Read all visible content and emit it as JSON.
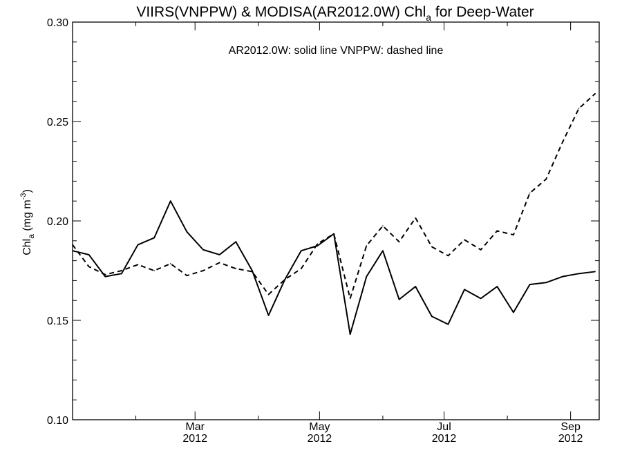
{
  "chart_data": {
    "type": "line",
    "title": {
      "main": "VIIRS(VNPPW) & MODISA(AR2012.0W)  Chl",
      "sub": "a",
      "rest": " for Deep-Water"
    },
    "annotation": "AR2012.0W: solid line   VNPPW: dashed line",
    "ylabel": {
      "main": "Chl",
      "sub": "a",
      "unit": " (mg m",
      "sup": "-3",
      "close": ")"
    },
    "ylim": [
      0.1,
      0.3
    ],
    "yticks": [
      "0.10",
      "0.15",
      "0.20",
      "0.25",
      "0.30"
    ],
    "xlim": [
      "2012-01-01",
      "2012-09-15"
    ],
    "xticks": [
      {
        "date": "2012-03-01",
        "month": "Mar",
        "year": "2012"
      },
      {
        "date": "2012-05-01",
        "month": "May",
        "year": "2012"
      },
      {
        "date": "2012-07-01",
        "month": "Jul",
        "year": "2012"
      },
      {
        "date": "2012-09-01",
        "month": "Sep",
        "year": "2012"
      }
    ],
    "series": [
      {
        "name": "AR2012.0W",
        "style": "solid",
        "points": [
          [
            "2012-01-01",
            0.185
          ],
          [
            "2012-01-09",
            0.183
          ],
          [
            "2012-01-17",
            0.172
          ],
          [
            "2012-01-25",
            0.1735
          ],
          [
            "2012-02-02",
            0.188
          ],
          [
            "2012-02-10",
            0.1915
          ],
          [
            "2012-02-18",
            0.21
          ],
          [
            "2012-02-26",
            0.1945
          ],
          [
            "2012-03-05",
            0.1855
          ],
          [
            "2012-03-13",
            0.183
          ],
          [
            "2012-03-21",
            0.1895
          ],
          [
            "2012-03-29",
            0.175
          ],
          [
            "2012-04-06",
            0.1525
          ],
          [
            "2012-04-14",
            0.1705
          ],
          [
            "2012-04-22",
            0.185
          ],
          [
            "2012-04-30",
            0.1875
          ],
          [
            "2012-05-08",
            0.1935
          ],
          [
            "2012-05-16",
            0.143
          ],
          [
            "2012-05-24",
            0.172
          ],
          [
            "2012-06-01",
            0.185
          ],
          [
            "2012-06-09",
            0.1605
          ],
          [
            "2012-06-17",
            0.167
          ],
          [
            "2012-06-25",
            0.152
          ],
          [
            "2012-07-03",
            0.148
          ],
          [
            "2012-07-11",
            0.1655
          ],
          [
            "2012-07-19",
            0.161
          ],
          [
            "2012-07-27",
            0.167
          ],
          [
            "2012-08-04",
            0.154
          ],
          [
            "2012-08-12",
            0.168
          ],
          [
            "2012-08-20",
            0.169
          ],
          [
            "2012-08-28",
            0.172
          ],
          [
            "2012-09-05",
            0.1735
          ],
          [
            "2012-09-13",
            0.1745
          ]
        ]
      },
      {
        "name": "VNPPW",
        "style": "dashed",
        "points": [
          [
            "2012-01-01",
            0.188
          ],
          [
            "2012-01-09",
            0.177
          ],
          [
            "2012-01-17",
            0.173
          ],
          [
            "2012-01-25",
            0.175
          ],
          [
            "2012-02-02",
            0.178
          ],
          [
            "2012-02-10",
            0.175
          ],
          [
            "2012-02-18",
            0.1785
          ],
          [
            "2012-02-26",
            0.1725
          ],
          [
            "2012-03-05",
            0.175
          ],
          [
            "2012-03-13",
            0.179
          ],
          [
            "2012-03-21",
            0.176
          ],
          [
            "2012-03-29",
            0.1745
          ],
          [
            "2012-04-06",
            0.163
          ],
          [
            "2012-04-14",
            0.1705
          ],
          [
            "2012-04-22",
            0.176
          ],
          [
            "2012-04-30",
            0.1885
          ],
          [
            "2012-05-08",
            0.1935
          ],
          [
            "2012-05-16",
            0.161
          ],
          [
            "2012-05-24",
            0.1875
          ],
          [
            "2012-06-01",
            0.1975
          ],
          [
            "2012-06-09",
            0.1895
          ],
          [
            "2012-06-17",
            0.2015
          ],
          [
            "2012-06-25",
            0.187
          ],
          [
            "2012-07-03",
            0.1825
          ],
          [
            "2012-07-11",
            0.1905
          ],
          [
            "2012-07-19",
            0.1855
          ],
          [
            "2012-07-27",
            0.195
          ],
          [
            "2012-08-04",
            0.193
          ],
          [
            "2012-08-12",
            0.214
          ],
          [
            "2012-08-20",
            0.221
          ],
          [
            "2012-08-28",
            0.2395
          ],
          [
            "2012-09-05",
            0.2565
          ],
          [
            "2012-09-13",
            0.264
          ]
        ]
      }
    ],
    "grid": false,
    "legend": "annotation text at top-center"
  }
}
